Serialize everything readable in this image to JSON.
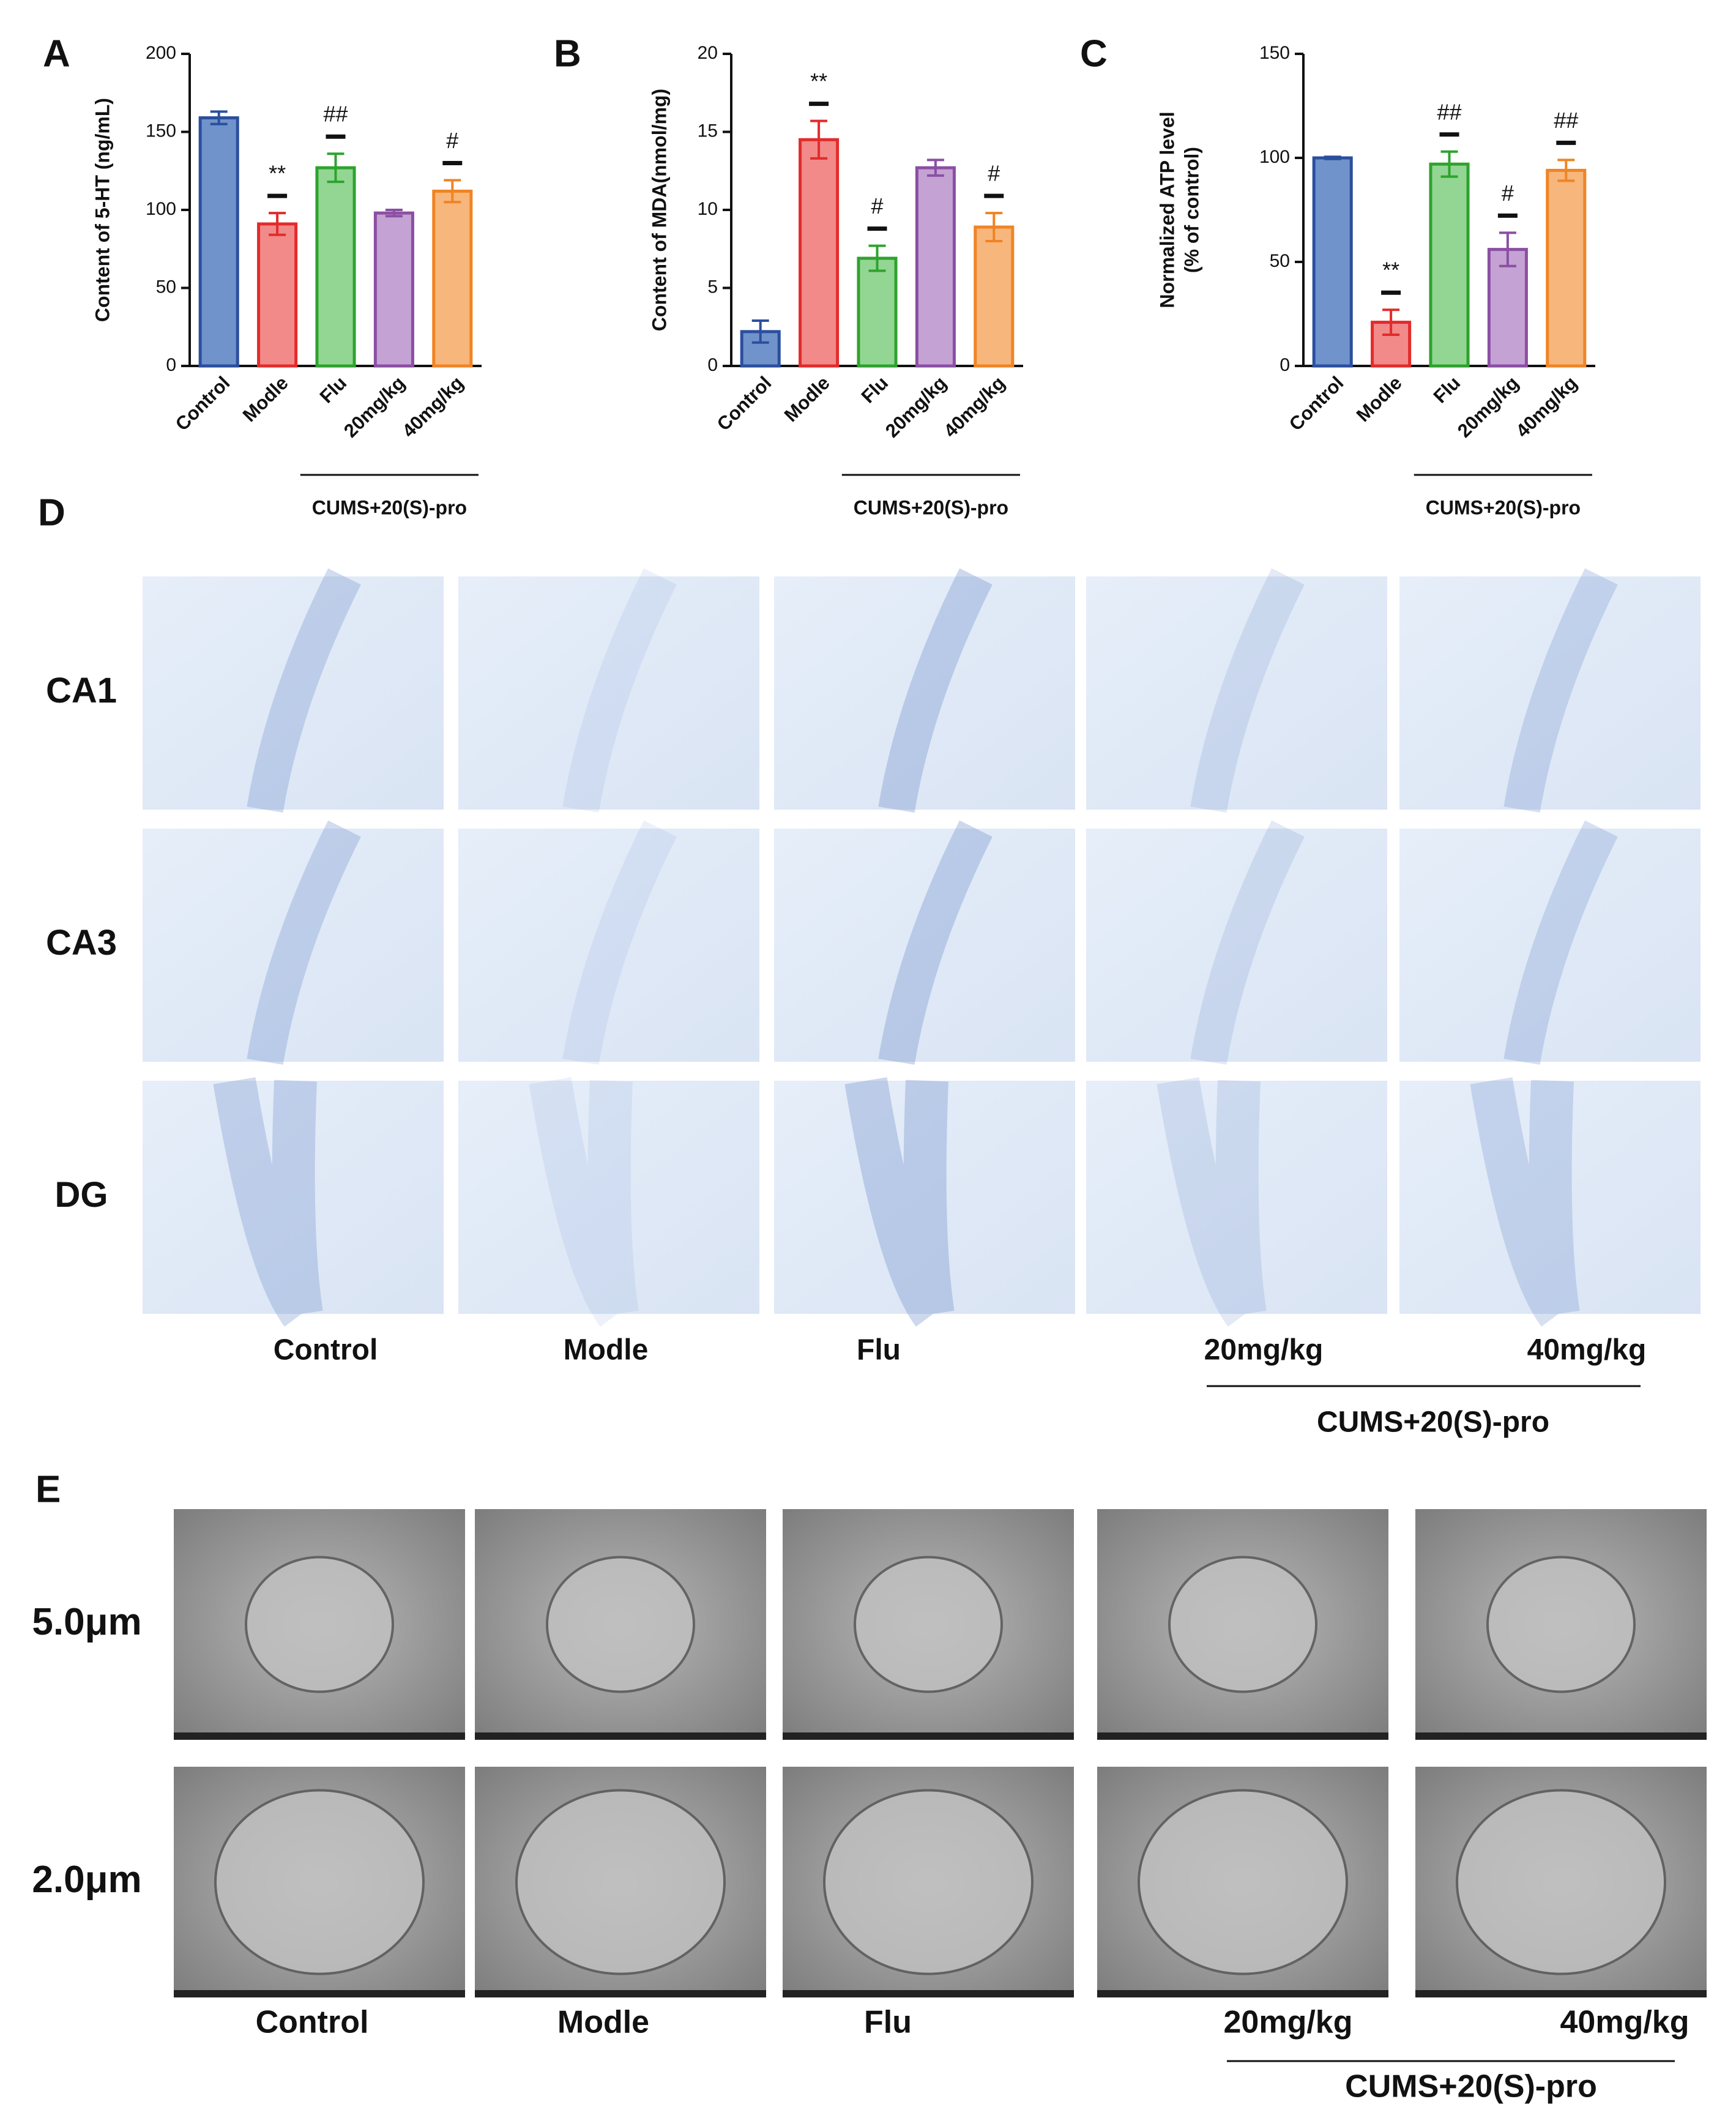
{
  "chart_data": [
    {
      "type": "bar",
      "panel": "A",
      "ylabel": [
        "Content of 5-HT (ng/mL)"
      ],
      "categories": [
        "Control",
        "Modle",
        "Flu",
        "20mg/kg",
        "40mg/kg"
      ],
      "values": [
        159,
        91,
        127,
        98,
        112
      ],
      "errors": [
        4,
        7,
        9,
        2,
        7
      ],
      "colors": [
        "#7193cb",
        "#f28a8a",
        "#93d693",
        "#c4a3d4",
        "#f7b77c"
      ],
      "edge_colors": [
        "#2b4f9e",
        "#e32b2b",
        "#2ea32e",
        "#8b4fa3",
        "#f08424"
      ],
      "annotations": [
        null,
        "**",
        "##",
        null,
        "#"
      ],
      "group_label": "CUMS+20(S)-pro",
      "ylim": [
        0,
        200
      ],
      "yticks": [
        0,
        50,
        100,
        150,
        200
      ]
    },
    {
      "type": "bar",
      "panel": "B",
      "ylabel": [
        "Content of MDA(nmol/mg)"
      ],
      "categories": [
        "Control",
        "Modle",
        "Flu",
        "20mg/kg",
        "40mg/kg"
      ],
      "values": [
        2.2,
        14.5,
        6.9,
        12.7,
        8.9
      ],
      "errors": [
        0.7,
        1.2,
        0.8,
        0.5,
        0.9
      ],
      "colors": [
        "#7193cb",
        "#f28a8a",
        "#93d693",
        "#c4a3d4",
        "#f7b77c"
      ],
      "edge_colors": [
        "#2b4f9e",
        "#e32b2b",
        "#2ea32e",
        "#8b4fa3",
        "#f08424"
      ],
      "annotations": [
        null,
        "**",
        "#",
        null,
        "#"
      ],
      "group_label": "CUMS+20(S)-pro",
      "ylim": [
        0,
        20
      ],
      "yticks": [
        0,
        5,
        10,
        15,
        20
      ]
    },
    {
      "type": "bar",
      "panel": "C",
      "ylabel": [
        "Normalized ATP level",
        "(% of control)"
      ],
      "categories": [
        "Control",
        "Modle",
        "Flu",
        "20mg/kg",
        "40mg/kg"
      ],
      "values": [
        100,
        21,
        97,
        56,
        94
      ],
      "errors": [
        0.5,
        6,
        6,
        8,
        5
      ],
      "colors": [
        "#7193cb",
        "#f28a8a",
        "#93d693",
        "#c4a3d4",
        "#f7b77c"
      ],
      "edge_colors": [
        "#2b4f9e",
        "#e32b2b",
        "#2ea32e",
        "#8b4fa3",
        "#f08424"
      ],
      "annotations": [
        null,
        "**",
        "##",
        "#",
        "##"
      ],
      "group_label": "CUMS+20(S)-pro",
      "ylim": [
        0,
        150
      ],
      "yticks": [
        0,
        50,
        100,
        150
      ]
    }
  ],
  "histology": {
    "panel": "D",
    "rows": [
      "CA1",
      "CA3",
      "DG"
    ],
    "columns": [
      "Control",
      "Modle",
      "Flu",
      "20mg/kg",
      "40mg/kg"
    ],
    "group_label": "CUMS+20(S)-pro"
  },
  "electron_microscopy": {
    "panel": "E",
    "rows": [
      "5.0μm",
      "2.0μm"
    ],
    "columns": [
      "Control",
      "Modle",
      "Flu",
      "20mg/kg",
      "40mg/kg"
    ],
    "group_label": "CUMS+20(S)-pro"
  }
}
